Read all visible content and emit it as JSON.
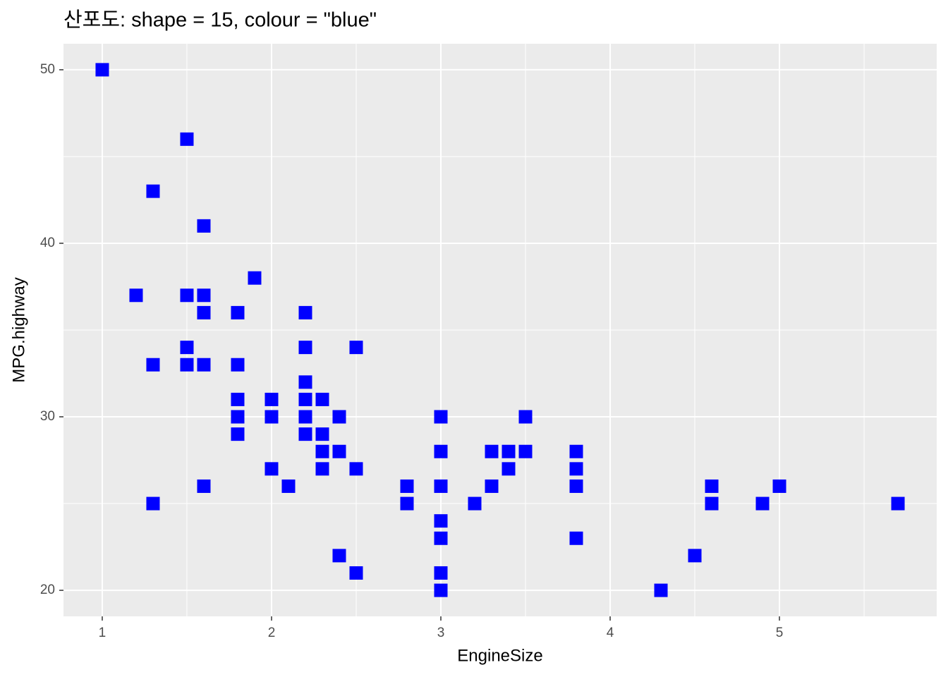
{
  "chart_data": {
    "type": "scatter",
    "title": "산포도: shape = 15, colour = \"blue\"",
    "x_label": "EngineSize",
    "y_label": "MPG.highway",
    "color": "#0000ff",
    "grid": true,
    "xlim": [
      0.771,
      5.929
    ],
    "xticks": [
      1,
      2,
      3,
      4,
      5
    ],
    "ylim": [
      18.5,
      51.5
    ],
    "yticks": [
      20,
      30,
      40,
      50
    ],
    "x": [
      1.0,
      1.5,
      1.3,
      1.6,
      1.9,
      1.2,
      1.5,
      1.6,
      1.6,
      1.8,
      2.2,
      1.5,
      2.2,
      2.5,
      1.3,
      1.5,
      1.6,
      1.8,
      2.2,
      1.8,
      2.0,
      2.2,
      2.3,
      1.8,
      2.0,
      2.2,
      2.4,
      3.0,
      3.5,
      1.8,
      2.2,
      2.3,
      2.3,
      2.4,
      3.0,
      3.3,
      3.4,
      3.5,
      3.8,
      2.0,
      2.3,
      2.5,
      3.4,
      3.8,
      1.6,
      2.1,
      2.8,
      3.0,
      3.3,
      3.8,
      4.6,
      5.0,
      1.3,
      2.8,
      3.2,
      4.6,
      4.9,
      5.7,
      3.0,
      3.0,
      3.8,
      2.4,
      4.5,
      2.5,
      3.0,
      3.0,
      4.3
    ],
    "values": [
      50,
      46,
      43,
      41,
      38,
      37,
      37,
      37,
      36,
      36,
      36,
      34,
      34,
      34,
      33,
      33,
      33,
      33,
      32,
      31,
      31,
      31,
      31,
      30,
      30,
      30,
      30,
      30,
      30,
      29,
      29,
      29,
      28,
      28,
      28,
      28,
      28,
      28,
      28,
      27,
      27,
      27,
      27,
      27,
      26,
      26,
      26,
      26,
      26,
      26,
      26,
      26,
      25,
      25,
      25,
      25,
      25,
      25,
      24,
      23,
      23,
      22,
      22,
      21,
      21,
      20,
      20
    ]
  }
}
